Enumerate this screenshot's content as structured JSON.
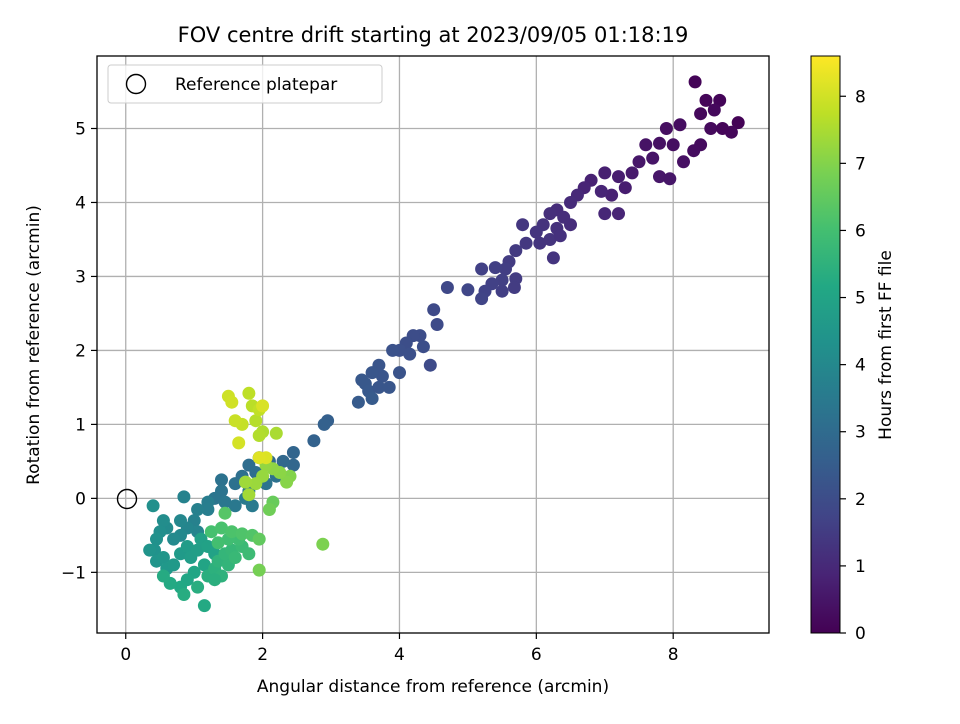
{
  "chart_data": {
    "type": "scatter",
    "title": "FOV centre drift starting at 2023/09/05 01:18:19",
    "xlabel": "Angular distance from reference (arcmin)",
    "ylabel": "Rotation from reference (arcmin)",
    "xlim": [
      -0.42,
      9.4
    ],
    "ylim": [
      -1.82,
      5.98
    ],
    "xticks": [
      0,
      2,
      4,
      6,
      8
    ],
    "yticks": [
      -1,
      0,
      1,
      2,
      3,
      4,
      5
    ],
    "grid": true,
    "legend": {
      "placement": "upper-left",
      "entries": [
        "Reference platepar"
      ]
    },
    "reference_point": {
      "x": 0,
      "y": 0,
      "label": "Reference platepar"
    },
    "colorbar": {
      "label": "Hours from first FF file",
      "colormap": "viridis",
      "range": [
        0,
        8.6
      ],
      "ticks": [
        0,
        1,
        2,
        3,
        4,
        5,
        6,
        7,
        8
      ]
    },
    "points": [
      [
        8.32,
        5.63,
        0.08
      ],
      [
        8.48,
        5.38,
        0.12
      ],
      [
        8.68,
        5.38,
        0.1
      ],
      [
        8.95,
        5.08,
        0.05
      ],
      [
        8.85,
        4.95,
        0.15
      ],
      [
        8.6,
        5.25,
        0.2
      ],
      [
        8.4,
        5.2,
        0.18
      ],
      [
        8.55,
        5.0,
        0.22
      ],
      [
        8.1,
        5.05,
        0.3
      ],
      [
        7.9,
        5.0,
        0.35
      ],
      [
        8.72,
        5.0,
        0.12
      ],
      [
        8.4,
        4.78,
        0.25
      ],
      [
        8.0,
        4.78,
        0.32
      ],
      [
        7.8,
        4.8,
        0.4
      ],
      [
        7.6,
        4.78,
        0.45
      ],
      [
        8.15,
        4.55,
        0.38
      ],
      [
        8.3,
        4.7,
        0.28
      ],
      [
        7.7,
        4.6,
        0.5
      ],
      [
        7.5,
        4.55,
        0.55
      ],
      [
        7.4,
        4.4,
        0.62
      ],
      [
        7.2,
        4.35,
        0.7
      ],
      [
        7.0,
        4.4,
        0.75
      ],
      [
        6.8,
        4.3,
        0.8
      ],
      [
        6.7,
        4.2,
        0.85
      ],
      [
        7.1,
        4.1,
        0.82
      ],
      [
        7.3,
        4.2,
        0.7
      ],
      [
        6.95,
        4.15,
        0.9
      ],
      [
        6.6,
        4.1,
        1.0
      ],
      [
        6.5,
        4.0,
        1.05
      ],
      [
        6.3,
        3.9,
        1.1
      ],
      [
        6.2,
        3.85,
        1.15
      ],
      [
        6.5,
        3.7,
        1.1
      ],
      [
        7.0,
        3.85,
        0.95
      ],
      [
        7.2,
        3.85,
        0.9
      ],
      [
        7.8,
        4.35,
        0.55
      ],
      [
        7.95,
        4.32,
        0.52
      ],
      [
        6.4,
        3.8,
        1.12
      ],
      [
        6.3,
        3.65,
        1.2
      ],
      [
        6.1,
        3.7,
        1.25
      ],
      [
        6.0,
        3.6,
        1.3
      ],
      [
        5.8,
        3.7,
        1.35
      ],
      [
        5.85,
        3.45,
        1.4
      ],
      [
        6.05,
        3.45,
        1.3
      ],
      [
        6.2,
        3.5,
        1.28
      ],
      [
        6.35,
        3.55,
        1.22
      ],
      [
        5.7,
        3.35,
        1.45
      ],
      [
        5.6,
        3.2,
        1.5
      ],
      [
        5.55,
        3.1,
        1.55
      ],
      [
        5.4,
        3.12,
        1.6
      ],
      [
        5.2,
        3.1,
        1.65
      ],
      [
        5.7,
        2.97,
        1.5
      ],
      [
        6.25,
        3.25,
        1.3
      ],
      [
        5.5,
        2.95,
        1.6
      ],
      [
        5.35,
        2.9,
        1.65
      ],
      [
        5.25,
        2.8,
        1.7
      ],
      [
        5.2,
        2.7,
        1.75
      ],
      [
        5.0,
        2.82,
        1.8
      ],
      [
        5.68,
        2.85,
        1.5
      ],
      [
        5.5,
        2.8,
        1.58
      ],
      [
        4.7,
        2.85,
        1.85
      ],
      [
        4.5,
        2.55,
        1.9
      ],
      [
        4.55,
        2.35,
        1.95
      ],
      [
        4.3,
        2.2,
        2.0
      ],
      [
        4.35,
        2.05,
        2.05
      ],
      [
        4.2,
        2.2,
        2.0
      ],
      [
        4.1,
        2.1,
        2.05
      ],
      [
        4.0,
        2.0,
        2.1
      ],
      [
        4.15,
        1.95,
        2.1
      ],
      [
        3.9,
        2.0,
        2.15
      ],
      [
        4.0,
        1.7,
        2.2
      ],
      [
        3.75,
        1.65,
        2.25
      ],
      [
        3.7,
        1.8,
        2.25
      ],
      [
        3.6,
        1.7,
        2.3
      ],
      [
        3.5,
        1.55,
        2.35
      ],
      [
        3.45,
        1.6,
        2.35
      ],
      [
        3.55,
        1.45,
        2.4
      ],
      [
        3.6,
        1.35,
        2.45
      ],
      [
        3.4,
        1.3,
        2.45
      ],
      [
        3.7,
        1.5,
        2.3
      ],
      [
        3.85,
        1.5,
        2.28
      ],
      [
        4.45,
        1.8,
        1.95
      ],
      [
        2.95,
        1.05,
        2.6
      ],
      [
        2.9,
        1.0,
        2.65
      ],
      [
        2.75,
        0.78,
        2.7
      ],
      [
        2.45,
        0.62,
        2.8
      ],
      [
        2.45,
        0.45,
        2.85
      ],
      [
        2.3,
        0.5,
        2.9
      ],
      [
        2.1,
        0.5,
        2.95
      ],
      [
        1.95,
        0.55,
        3.0
      ],
      [
        1.8,
        0.45,
        3.05
      ],
      [
        1.9,
        0.35,
        3.1
      ],
      [
        1.7,
        0.3,
        3.15
      ],
      [
        1.6,
        0.2,
        3.2
      ],
      [
        1.4,
        0.25,
        3.25
      ],
      [
        1.4,
        0.1,
        3.3
      ],
      [
        1.3,
        0.0,
        3.35
      ],
      [
        1.45,
        -0.05,
        3.4
      ],
      [
        1.6,
        -0.1,
        3.45
      ],
      [
        1.75,
        0.0,
        3.5
      ],
      [
        1.8,
        0.1,
        3.45
      ],
      [
        2.05,
        0.2,
        3.3
      ],
      [
        2.2,
        0.3,
        3.2
      ],
      [
        1.85,
        -0.1,
        3.5
      ],
      [
        1.2,
        -0.05,
        3.6
      ],
      [
        1.2,
        -0.15,
        3.65
      ],
      [
        1.05,
        -0.15,
        3.7
      ],
      [
        1.0,
        -0.3,
        3.75
      ],
      [
        0.85,
        0.02,
        3.8
      ],
      [
        1.05,
        -0.45,
        3.85
      ],
      [
        0.9,
        -0.4,
        3.9
      ],
      [
        0.8,
        -0.3,
        3.95
      ],
      [
        0.8,
        -0.5,
        4.0
      ],
      [
        0.7,
        -0.55,
        4.05
      ],
      [
        0.6,
        -0.4,
        4.1
      ],
      [
        0.55,
        -0.3,
        4.15
      ],
      [
        0.5,
        -0.45,
        4.2
      ],
      [
        0.4,
        -0.1,
        4.25
      ],
      [
        0.45,
        -0.55,
        4.3
      ],
      [
        0.42,
        -0.7,
        4.35
      ],
      [
        0.35,
        -0.7,
        4.4
      ],
      [
        0.45,
        -0.85,
        4.45
      ],
      [
        0.55,
        -0.8,
        4.5
      ],
      [
        0.6,
        -0.95,
        4.55
      ],
      [
        0.7,
        -0.9,
        4.6
      ],
      [
        0.8,
        -0.75,
        4.65
      ],
      [
        0.9,
        -0.65,
        4.7
      ],
      [
        0.95,
        -0.8,
        4.75
      ],
      [
        1.05,
        -0.7,
        4.8
      ],
      [
        1.1,
        -0.55,
        4.85
      ],
      [
        1.2,
        -0.65,
        4.9
      ],
      [
        1.3,
        -0.75,
        4.95
      ],
      [
        1.15,
        -0.9,
        5.0
      ],
      [
        1.0,
        -1.0,
        5.05
      ],
      [
        0.9,
        -1.1,
        5.1
      ],
      [
        0.8,
        -1.2,
        5.15
      ],
      [
        0.65,
        -1.15,
        5.2
      ],
      [
        0.55,
        -1.05,
        5.25
      ],
      [
        0.85,
        -1.3,
        5.3
      ],
      [
        1.05,
        -1.2,
        5.35
      ],
      [
        1.2,
        -1.05,
        5.4
      ],
      [
        1.3,
        -0.95,
        5.45
      ],
      [
        1.4,
        -1.05,
        5.5
      ],
      [
        1.35,
        -0.85,
        5.55
      ],
      [
        1.5,
        -0.9,
        5.6
      ],
      [
        1.45,
        -0.75,
        5.65
      ],
      [
        1.55,
        -0.7,
        5.7
      ],
      [
        1.6,
        -0.8,
        5.75
      ],
      [
        1.7,
        -0.65,
        5.8
      ],
      [
        1.8,
        -0.75,
        5.85
      ],
      [
        1.65,
        -0.55,
        5.9
      ],
      [
        1.5,
        -0.55,
        5.95
      ],
      [
        1.35,
        -0.6,
        6.0
      ],
      [
        1.25,
        -0.45,
        6.05
      ],
      [
        1.4,
        -0.4,
        6.1
      ],
      [
        1.55,
        -0.45,
        6.15
      ],
      [
        1.7,
        -0.48,
        6.2
      ],
      [
        1.85,
        -0.5,
        6.25
      ],
      [
        1.15,
        -1.45,
        5.2
      ],
      [
        1.3,
        -1.1,
        5.4
      ],
      [
        1.45,
        -0.2,
        6.3
      ],
      [
        1.95,
        -0.55,
        6.5
      ],
      [
        2.15,
        -0.05,
        6.6
      ],
      [
        2.1,
        -0.15,
        6.7
      ],
      [
        1.95,
        -0.97,
        6.8
      ],
      [
        2.88,
        -0.62,
        6.9
      ],
      [
        2.4,
        0.3,
        7.0
      ],
      [
        2.35,
        0.22,
        7.05
      ],
      [
        2.25,
        0.35,
        7.1
      ],
      [
        2.15,
        0.4,
        7.15
      ],
      [
        2.05,
        0.45,
        7.2
      ],
      [
        2.0,
        0.3,
        7.25
      ],
      [
        1.9,
        0.2,
        7.3
      ],
      [
        1.75,
        0.22,
        7.35
      ],
      [
        1.8,
        0.05,
        7.4
      ],
      [
        2.2,
        0.88,
        7.5
      ],
      [
        2.0,
        0.9,
        7.55
      ],
      [
        1.95,
        0.85,
        7.6
      ],
      [
        1.9,
        1.05,
        7.65
      ],
      [
        1.85,
        1.25,
        7.7
      ],
      [
        1.8,
        1.42,
        7.75
      ],
      [
        1.95,
        1.2,
        7.8
      ],
      [
        1.7,
        1.0,
        7.85
      ],
      [
        1.6,
        1.05,
        7.9
      ],
      [
        1.5,
        1.38,
        7.95
      ],
      [
        1.55,
        1.3,
        8.0
      ],
      [
        1.65,
        0.75,
        8.05
      ],
      [
        2.0,
        1.25,
        8.1
      ],
      [
        2.05,
        0.55,
        8.15
      ],
      [
        1.95,
        0.55,
        8.2
      ]
    ]
  }
}
